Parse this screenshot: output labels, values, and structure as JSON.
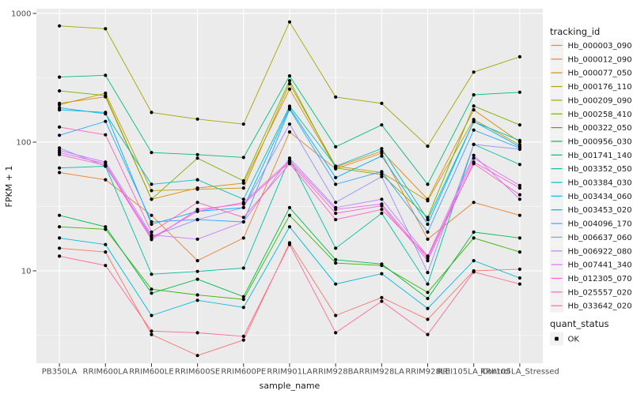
{
  "legend": {
    "tracking_title": "tracking_id",
    "quant_title": "quant_status",
    "quant_ok_label": "OK"
  },
  "axes": {
    "y_title": "FPKM + 1",
    "x_title": "sample_name"
  },
  "chart_data": {
    "type": "line",
    "title": "",
    "xlabel": "sample_name",
    "ylabel": "FPKM + 1",
    "y_scale": "log10",
    "ylim": [
      1.9,
      1090
    ],
    "y_major_ticks": [
      1000,
      100,
      10
    ],
    "y_major_tick_labels": [
      "1000",
      "100",
      "10"
    ],
    "y_minor_gridlines": [
      316.2,
      31.62,
      3.162
    ],
    "grid": true,
    "plot_bg": "#EBEBEB",
    "gridline_color": "#FFFFFF",
    "point_color": "#000000",
    "legend_position": "right",
    "categories": [
      "PB350LA",
      "RRIM600LA",
      "RRIM600LE",
      "RRIM600SE",
      "RRIM600PE",
      "RRIM901LA",
      "RRIM928BA",
      "RRIM928LA",
      "RRIM928LE",
      "RRII105LA_Control",
      "RRII105LA_Stressed"
    ],
    "series": [
      {
        "name": "Hb_000003_090",
        "color": "#F8766D",
        "values": [
          15,
          14,
          3.2,
          2.2,
          2.9,
          16.5,
          4.5,
          6.2,
          4.2,
          10,
          10.3
        ]
      },
      {
        "name": "Hb_000012_090",
        "color": "#EA8331",
        "values": [
          58,
          51,
          27,
          12,
          18,
          120,
          62,
          82,
          17.6,
          34,
          27
        ]
      },
      {
        "name": "Hb_000077_050",
        "color": "#D89000",
        "values": [
          200,
          225,
          36,
          44,
          48,
          258,
          64,
          85,
          36,
          178,
          100
        ]
      },
      {
        "name": "Hb_000176_110",
        "color": "#C09B00",
        "values": [
          195,
          240,
          42,
          43,
          44,
          284,
          65,
          58,
          35,
          150,
          95
        ]
      },
      {
        "name": "Hb_000209_090",
        "color": "#A3A500",
        "values": [
          800,
          760,
          170,
          151,
          138,
          858,
          224,
          200,
          93,
          350,
          460
        ]
      },
      {
        "name": "Hb_000258_410",
        "color": "#7CAE00",
        "values": [
          250,
          230,
          36,
          75,
          50,
          300,
          63,
          56,
          26,
          191,
          136
        ]
      },
      {
        "name": "Hb_000322_050",
        "color": "#39B600",
        "values": [
          22,
          21,
          7.2,
          6.5,
          6.0,
          27,
          11.5,
          11,
          6.8,
          18,
          14
        ]
      },
      {
        "name": "Hb_000956_030",
        "color": "#00BB4E",
        "values": [
          27,
          22,
          6.7,
          8.6,
          6.3,
          31,
          12.2,
          11.3,
          6.1,
          20,
          18
        ]
      },
      {
        "name": "Hb_001741_140",
        "color": "#00BF7D",
        "values": [
          320,
          330,
          83,
          80,
          76,
          327,
          92,
          136,
          47,
          233,
          244
        ]
      },
      {
        "name": "Hb_003352_050",
        "color": "#00C1A3",
        "values": [
          63,
          65,
          9.4,
          9.9,
          10.5,
          75,
          15,
          28,
          7.9,
          96,
          67
        ]
      },
      {
        "name": "Hb_003384_030",
        "color": "#00BFC4",
        "values": [
          185,
          166,
          47,
          51,
          36,
          190,
          65,
          89,
          25,
          144,
          103
        ]
      },
      {
        "name": "Hb_003434_060",
        "color": "#00BAE0",
        "values": [
          18,
          16,
          4.5,
          5.9,
          5.2,
          22,
          7.9,
          9.5,
          5.1,
          12,
          8.8
        ]
      },
      {
        "name": "Hb_003453_020",
        "color": "#00B0F6",
        "values": [
          178,
          170,
          23,
          29,
          31,
          184,
          53,
          78,
          23,
          145,
          92
        ]
      },
      {
        "name": "Hb_004096_170",
        "color": "#35A2FF",
        "values": [
          113,
          145,
          24,
          25,
          24,
          180,
          47,
          59,
          20,
          124,
          90
        ]
      },
      {
        "name": "Hb_006637_060",
        "color": "#9590FF",
        "values": [
          90,
          65,
          18.5,
          25,
          31,
          138,
          34,
          54,
          9.7,
          96,
          88
        ]
      },
      {
        "name": "Hb_006922_080",
        "color": "#C77CFF",
        "values": [
          86,
          70,
          19,
          17.6,
          24,
          75,
          31,
          36,
          13,
          79,
          36
        ]
      },
      {
        "name": "Hb_007441_340",
        "color": "#E76BF3",
        "values": [
          83,
          68,
          18,
          29,
          34,
          72,
          30,
          33,
          12.5,
          75,
          46
        ]
      },
      {
        "name": "Hb_012305_070",
        "color": "#FA62DB",
        "values": [
          80,
          66,
          17.5,
          30,
          33,
          70,
          28,
          32,
          12,
          70,
          44
        ]
      },
      {
        "name": "Hb_025557_020",
        "color": "#FF62BC",
        "values": [
          131,
          114,
          20,
          34,
          26,
          68,
          25,
          30,
          13,
          68,
          39
        ]
      },
      {
        "name": "Hb_033642_020",
        "color": "#FF6A98",
        "values": [
          13,
          11,
          3.4,
          3.3,
          3.1,
          16,
          3.3,
          5.8,
          3.2,
          9.8,
          7.9
        ]
      }
    ]
  }
}
